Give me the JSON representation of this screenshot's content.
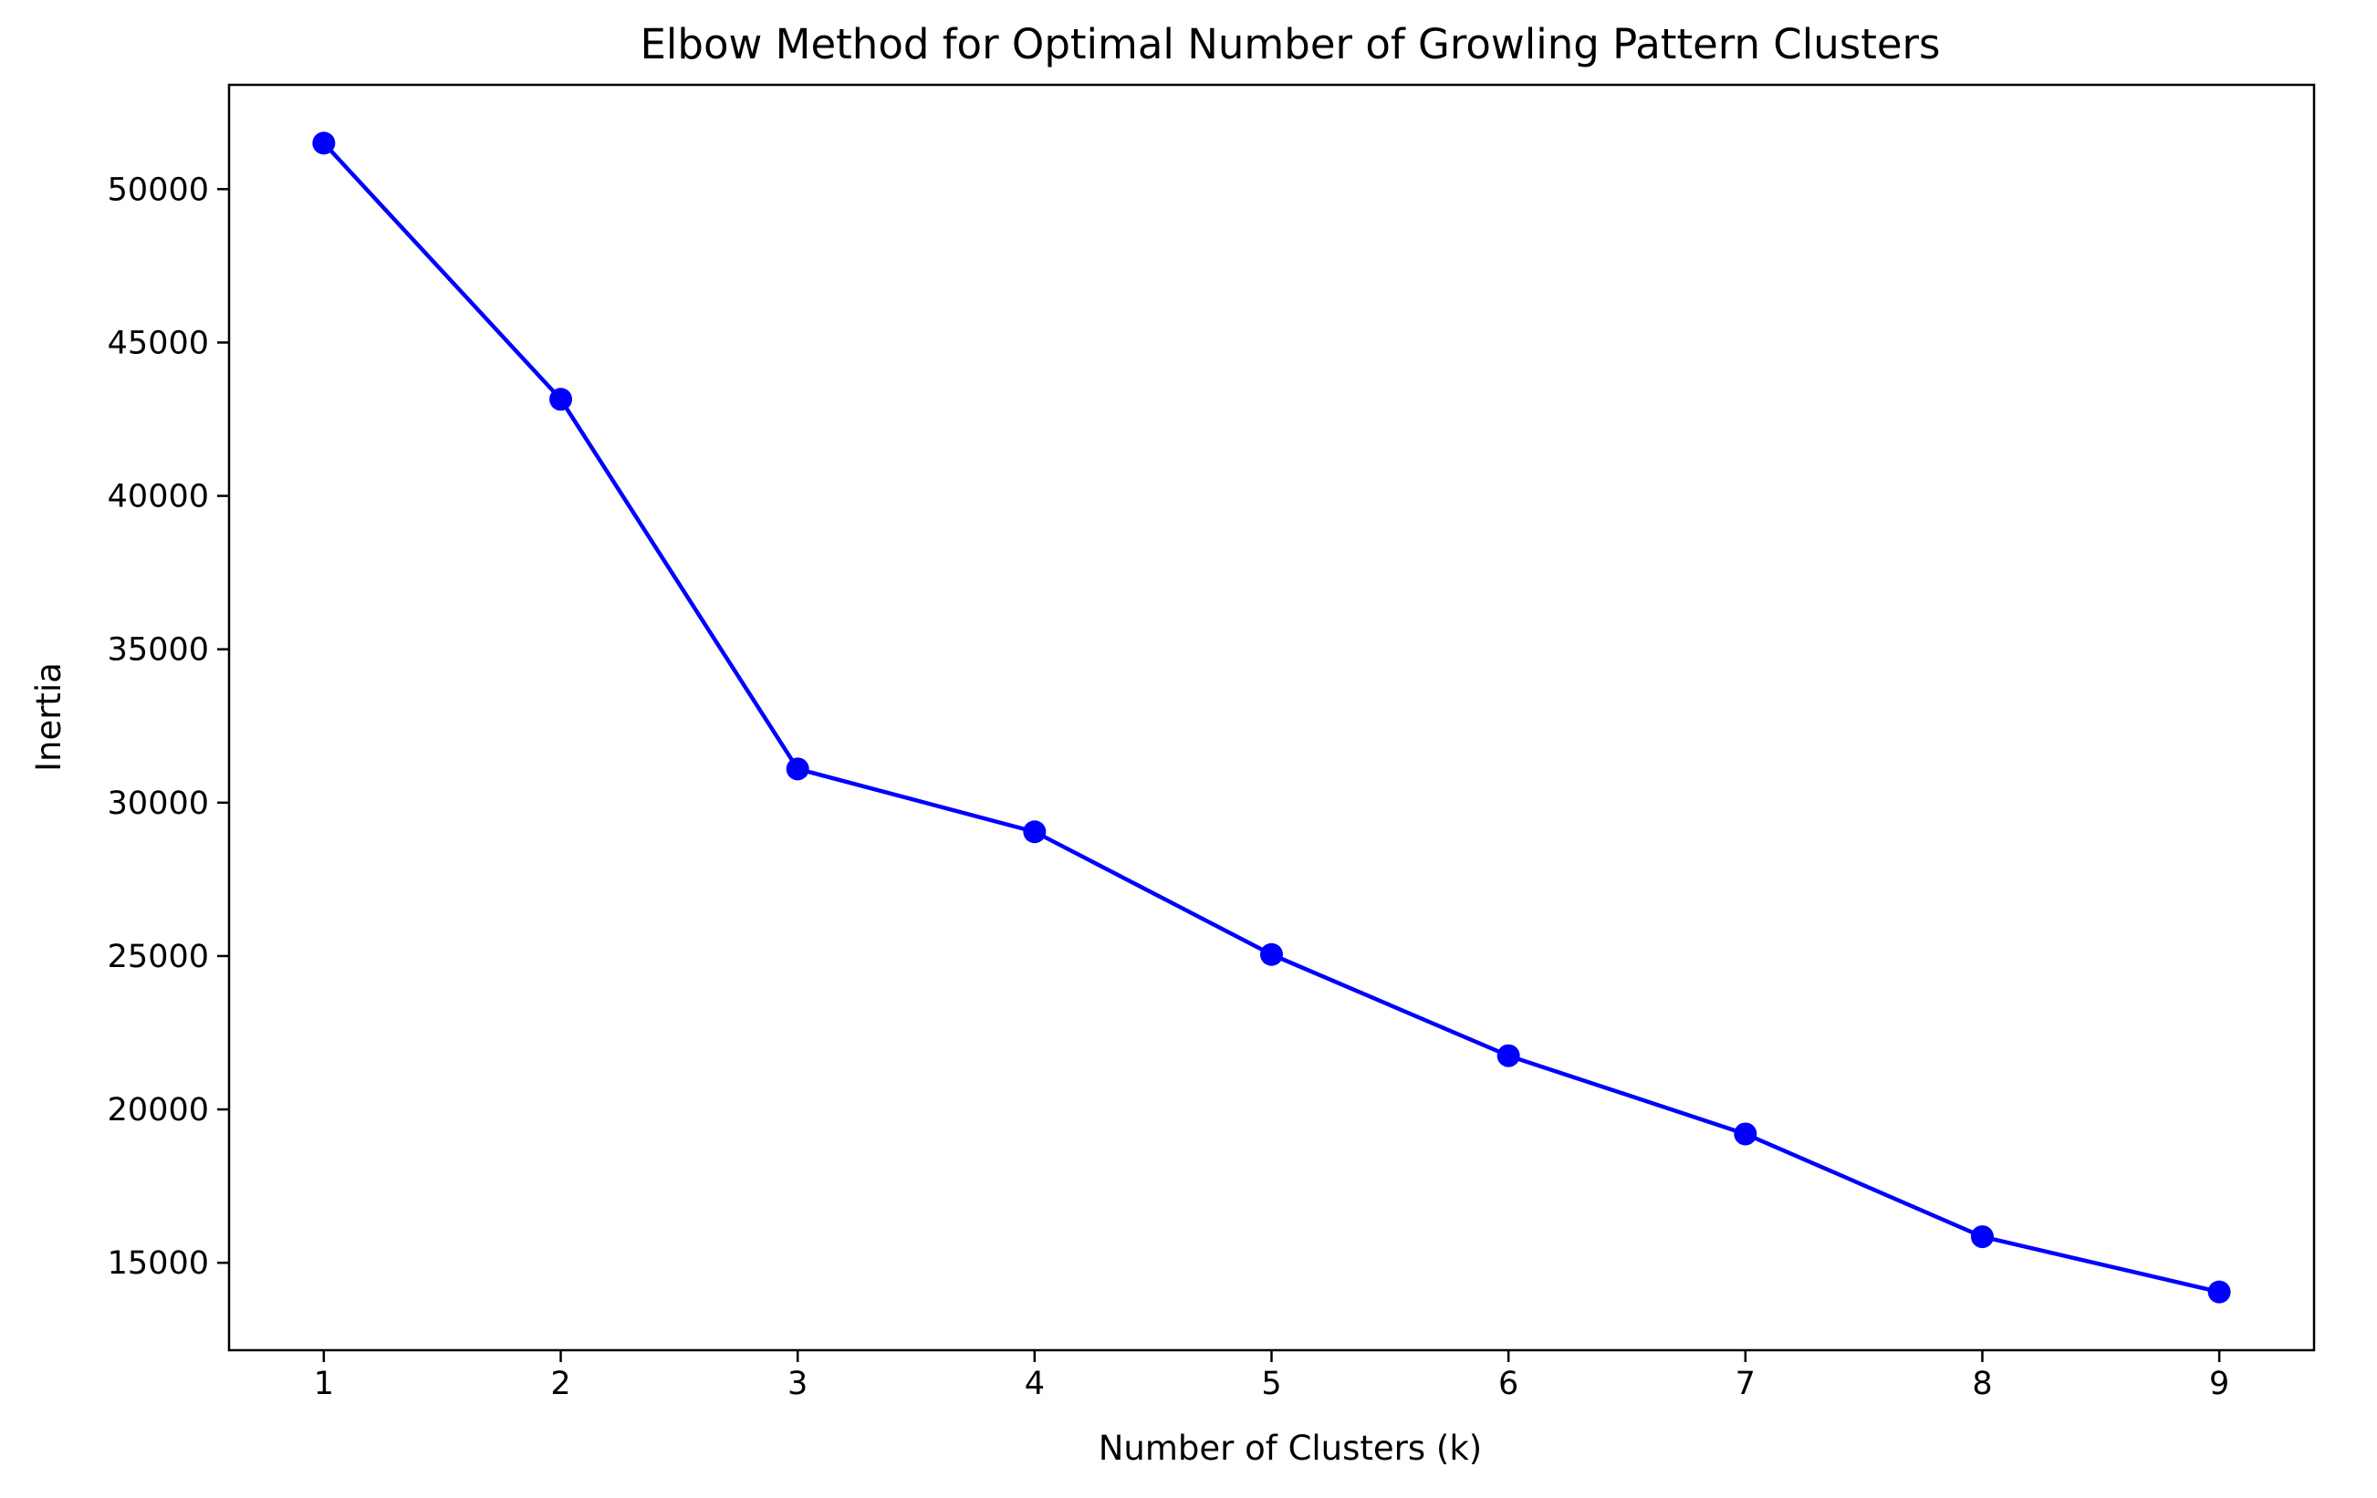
{
  "chart_data": {
    "type": "line",
    "title": "Elbow Method for Optimal Number of Growling Pattern Clusters",
    "xlabel": "Number of Clusters (k)",
    "ylabel": "Inertia",
    "x": [
      1,
      2,
      3,
      4,
      5,
      6,
      7,
      8,
      9
    ],
    "series": [
      {
        "values": [
          51500,
          43150,
          31100,
          29050,
          25050,
          21750,
          19200,
          15850,
          14050
        ],
        "color": "#0000ff",
        "marker": "circle"
      }
    ],
    "xlim": [
      0.6,
      9.4
    ],
    "ylim": [
      12150,
      53400
    ],
    "xticks": [
      1,
      2,
      3,
      4,
      5,
      6,
      7,
      8,
      9
    ],
    "yticks": [
      15000,
      20000,
      25000,
      30000,
      35000,
      40000,
      45000,
      50000
    ],
    "grid": false,
    "legend": "none"
  }
}
